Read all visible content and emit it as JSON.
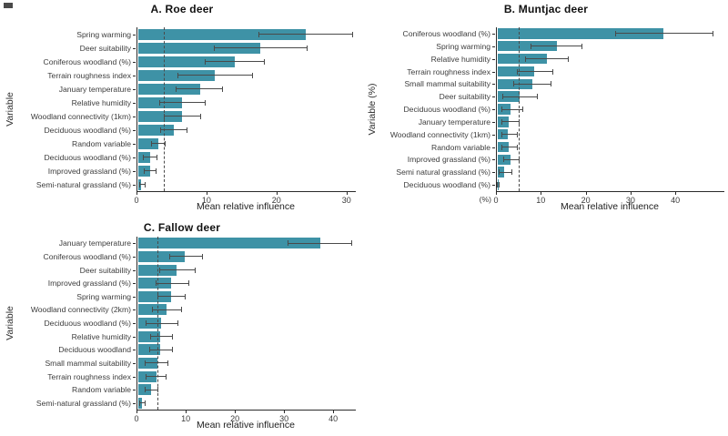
{
  "figure": {
    "background": "#ffffff",
    "bar_color": "#3e92a6",
    "error_bar_color": "#4a4a4a",
    "dashed_line_color": "#4a4a4a",
    "axis_color": "#2a2a2a",
    "text_color": "#3d3d3d",
    "title_color": "#111111"
  },
  "chart_data": [
    {
      "panel": "A",
      "type": "bar",
      "orientation": "horizontal",
      "title": "A. Roe deer",
      "xlabel": "Mean relative influence",
      "ylabel": "Variable",
      "xlim": [
        0,
        31.2
      ],
      "xticks": [
        0,
        10,
        20,
        30
      ],
      "grid": false,
      "threshold_line_x": 3.7,
      "bars": [
        {
          "label": "Spring warming",
          "value": 24.0,
          "ci_low": 17.3,
          "ci_high": 30.7
        },
        {
          "label": "Deer suitability",
          "value": 17.5,
          "ci_low": 10.9,
          "ci_high": 24.2
        },
        {
          "label": "Coniferous woodland (%)",
          "value": 13.8,
          "ci_low": 9.6,
          "ci_high": 18.1
        },
        {
          "label": "Terrain roughness index",
          "value": 11.0,
          "ci_low": 5.7,
          "ci_high": 16.4
        },
        {
          "label": "January temperature",
          "value": 8.9,
          "ci_low": 5.5,
          "ci_high": 12.1
        },
        {
          "label": "Relative humidity",
          "value": 6.3,
          "ci_low": 3.1,
          "ci_high": 9.6
        },
        {
          "label": "Woodland connectivity (1km)",
          "value": 6.3,
          "ci_low": 3.8,
          "ci_high": 9.0
        },
        {
          "label": "Deciduous  woodland (%)",
          "value": 5.1,
          "ci_low": 3.2,
          "ci_high": 7.0
        },
        {
          "label": "Random variable",
          "value": 2.9,
          "ci_low": 2.0,
          "ci_high": 3.9
        },
        {
          "label": "Deciduous woodland (%)",
          "value": 1.7,
          "ci_low": 0.8,
          "ci_high": 2.7
        },
        {
          "label": "Improved grassland (%)",
          "value": 1.7,
          "ci_low": 0.9,
          "ci_high": 2.6
        },
        {
          "label": "Semi-natural grassland (%)",
          "value": 0.5,
          "ci_low": 0.2,
          "ci_high": 1.0
        }
      ]
    },
    {
      "panel": "B",
      "type": "bar",
      "orientation": "horizontal",
      "title": "B. Muntjac deer",
      "xlabel": "Mean relative influence",
      "ylabel": "Variable (%)",
      "origin_label": "(%)",
      "xlim": [
        0,
        50.7
      ],
      "xticks": [
        0,
        10,
        20,
        30,
        40
      ],
      "grid": false,
      "threshold_line_x": 4.8,
      "bars": [
        {
          "label": "Coniferous woodland (%)",
          "value": 37.0,
          "ci_low": 26.3,
          "ci_high": 48.0
        },
        {
          "label": "Spring warming",
          "value": 13.2,
          "ci_low": 7.4,
          "ci_high": 18.8
        },
        {
          "label": "Relative humidity",
          "value": 11.0,
          "ci_low": 6.2,
          "ci_high": 15.8
        },
        {
          "label": "Terrain roughness index",
          "value": 8.2,
          "ci_low": 4.5,
          "ci_high": 12.4
        },
        {
          "label": "Small mammal suitability",
          "value": 7.8,
          "ci_low": 3.6,
          "ci_high": 12.0
        },
        {
          "label": "Deer suitability",
          "value": 5.0,
          "ci_low": 1.3,
          "ci_high": 9.0
        },
        {
          "label": "Deciduous  woodland (%)",
          "value": 3.0,
          "ci_low": 1.1,
          "ci_high": 5.6
        },
        {
          "label": "January temperature",
          "value": 2.6,
          "ci_low": 1.0,
          "ci_high": 4.9
        },
        {
          "label": "Woodland connectivity (1km)",
          "value": 2.4,
          "ci_low": 1.0,
          "ci_high": 4.4
        },
        {
          "label": "Random variable",
          "value": 2.5,
          "ci_low": 1.1,
          "ci_high": 4.5
        },
        {
          "label": "Improved grassland (%)",
          "value": 3.0,
          "ci_low": 1.4,
          "ci_high": 4.8
        },
        {
          "label": "Semi natural grassland (%)",
          "value": 1.5,
          "ci_low": 0.3,
          "ci_high": 3.2
        },
        {
          "label": "Deciduous woodland (%)",
          "value": 0.12,
          "ci_low": 0.02,
          "ci_high": 0.3
        }
      ]
    },
    {
      "panel": "C",
      "type": "bar",
      "orientation": "horizontal",
      "title": "C. Fallow deer",
      "xlabel": "Mean relative influence",
      "ylabel": "Variable",
      "xlim": [
        0,
        44.4
      ],
      "xticks": [
        0,
        10,
        20,
        30,
        40
      ],
      "grid": false,
      "threshold_line_x": 4.0,
      "bars": [
        {
          "label": "January temperature",
          "value": 37.0,
          "ci_low": 30.6,
          "ci_high": 43.5
        },
        {
          "label": "Coniferous woodland (%)",
          "value": 9.6,
          "ci_low": 6.4,
          "ci_high": 13.1
        },
        {
          "label": "Deer suitability",
          "value": 7.9,
          "ci_low": 4.5,
          "ci_high": 11.7
        },
        {
          "label": "Improved grassland (%)",
          "value": 6.8,
          "ci_low": 3.7,
          "ci_high": 10.4
        },
        {
          "label": "Spring warming",
          "value": 6.8,
          "ci_low": 4.0,
          "ci_high": 9.6
        },
        {
          "label": "Woodland connectivity (2km)",
          "value": 5.9,
          "ci_low": 3.0,
          "ci_high": 8.8
        },
        {
          "label": "Deciduous woodland (%)",
          "value": 4.8,
          "ci_low": 1.6,
          "ci_high": 8.2
        },
        {
          "label": "Relative humidity",
          "value": 4.6,
          "ci_low": 2.6,
          "ci_high": 7.1
        },
        {
          "label": "Deciduous  woodland",
          "value": 4.6,
          "ci_low": 2.4,
          "ci_high": 7.0
        },
        {
          "label": "Small mammal suitability",
          "value": 4.0,
          "ci_low": 1.5,
          "ci_high": 6.1
        },
        {
          "label": "Terrain roughness index",
          "value": 3.7,
          "ci_low": 1.6,
          "ci_high": 5.7
        },
        {
          "label": "Random variable",
          "value": 2.6,
          "ci_low": 1.4,
          "ci_high": 4.1
        },
        {
          "label": "Semi-natural grassland (%)",
          "value": 0.9,
          "ci_low": 0.4,
          "ci_high": 1.4
        }
      ]
    }
  ]
}
